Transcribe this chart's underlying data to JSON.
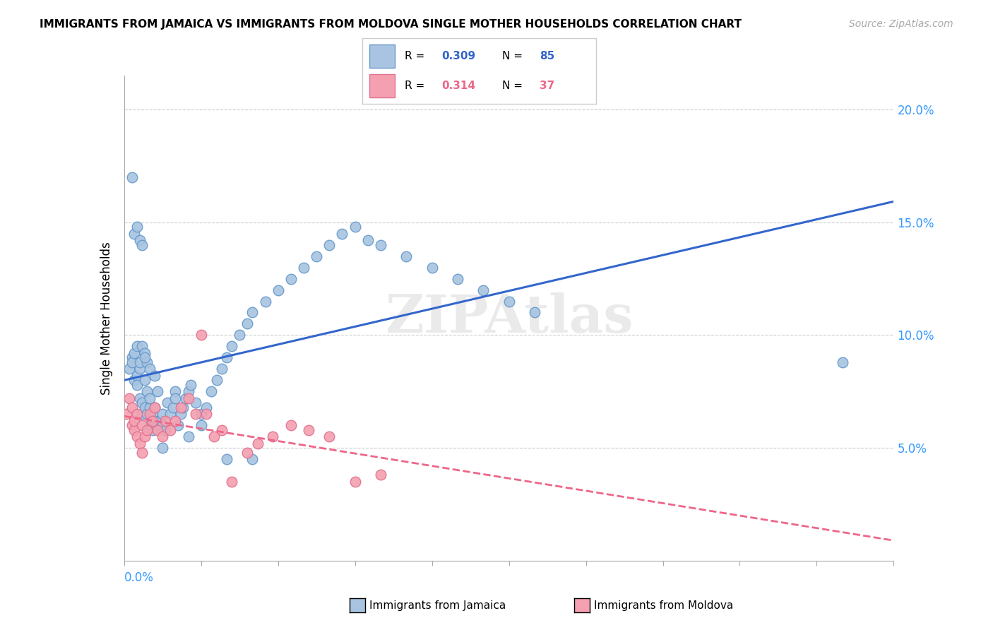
{
  "title": "IMMIGRANTS FROM JAMAICA VS IMMIGRANTS FROM MOLDOVA SINGLE MOTHER HOUSEHOLDS CORRELATION CHART",
  "source": "Source: ZipAtlas.com",
  "ylabel": "Single Mother Households",
  "xlim": [
    0.0,
    0.3
  ],
  "ylim": [
    0.0,
    0.215
  ],
  "yticks": [
    0.05,
    0.1,
    0.15,
    0.2
  ],
  "ytick_labels": [
    "5.0%",
    "10.0%",
    "15.0%",
    "20.0%"
  ],
  "jamaica_color": "#a8c4e0",
  "moldova_color": "#f4a0b0",
  "jamaica_edge": "#6699cc",
  "moldova_edge": "#e07090",
  "trend_jamaica_color": "#3366cc",
  "trend_moldova_color": "#ee6688",
  "watermark": "ZIPAtlas",
  "jamaica_x": [
    0.002,
    0.003,
    0.003,
    0.004,
    0.004,
    0.005,
    0.005,
    0.005,
    0.006,
    0.006,
    0.006,
    0.007,
    0.007,
    0.007,
    0.008,
    0.008,
    0.008,
    0.009,
    0.009,
    0.009,
    0.01,
    0.01,
    0.01,
    0.011,
    0.011,
    0.012,
    0.012,
    0.013,
    0.013,
    0.014,
    0.015,
    0.015,
    0.016,
    0.017,
    0.018,
    0.019,
    0.02,
    0.021,
    0.022,
    0.023,
    0.024,
    0.025,
    0.026,
    0.028,
    0.03,
    0.032,
    0.034,
    0.036,
    0.038,
    0.04,
    0.042,
    0.045,
    0.048,
    0.05,
    0.055,
    0.06,
    0.065,
    0.07,
    0.075,
    0.08,
    0.085,
    0.09,
    0.095,
    0.1,
    0.11,
    0.12,
    0.13,
    0.14,
    0.15,
    0.16,
    0.003,
    0.004,
    0.005,
    0.006,
    0.007,
    0.008,
    0.01,
    0.012,
    0.015,
    0.02,
    0.025,
    0.03,
    0.04,
    0.05,
    0.28
  ],
  "jamaica_y": [
    0.085,
    0.09,
    0.088,
    0.092,
    0.08,
    0.095,
    0.082,
    0.078,
    0.085,
    0.072,
    0.088,
    0.065,
    0.095,
    0.07,
    0.08,
    0.068,
    0.092,
    0.075,
    0.088,
    0.065,
    0.06,
    0.068,
    0.072,
    0.065,
    0.058,
    0.062,
    0.068,
    0.06,
    0.075,
    0.062,
    0.065,
    0.06,
    0.058,
    0.07,
    0.065,
    0.068,
    0.075,
    0.06,
    0.065,
    0.068,
    0.072,
    0.075,
    0.078,
    0.07,
    0.065,
    0.068,
    0.075,
    0.08,
    0.085,
    0.09,
    0.095,
    0.1,
    0.105,
    0.11,
    0.115,
    0.12,
    0.125,
    0.13,
    0.135,
    0.14,
    0.145,
    0.148,
    0.142,
    0.14,
    0.135,
    0.13,
    0.125,
    0.12,
    0.115,
    0.11,
    0.17,
    0.145,
    0.148,
    0.142,
    0.14,
    0.09,
    0.085,
    0.082,
    0.05,
    0.072,
    0.055,
    0.06,
    0.045,
    0.045,
    0.088
  ],
  "moldova_x": [
    0.001,
    0.002,
    0.003,
    0.003,
    0.004,
    0.004,
    0.005,
    0.005,
    0.006,
    0.007,
    0.007,
    0.008,
    0.009,
    0.01,
    0.011,
    0.012,
    0.013,
    0.015,
    0.016,
    0.018,
    0.02,
    0.022,
    0.025,
    0.028,
    0.03,
    0.032,
    0.035,
    0.038,
    0.042,
    0.048,
    0.052,
    0.058,
    0.065,
    0.072,
    0.08,
    0.09,
    0.1
  ],
  "moldova_y": [
    0.065,
    0.072,
    0.068,
    0.06,
    0.058,
    0.062,
    0.055,
    0.065,
    0.052,
    0.048,
    0.06,
    0.055,
    0.058,
    0.065,
    0.062,
    0.068,
    0.058,
    0.055,
    0.062,
    0.058,
    0.062,
    0.068,
    0.072,
    0.065,
    0.1,
    0.065,
    0.055,
    0.058,
    0.035,
    0.048,
    0.052,
    0.055,
    0.06,
    0.058,
    0.055,
    0.035,
    0.038
  ]
}
